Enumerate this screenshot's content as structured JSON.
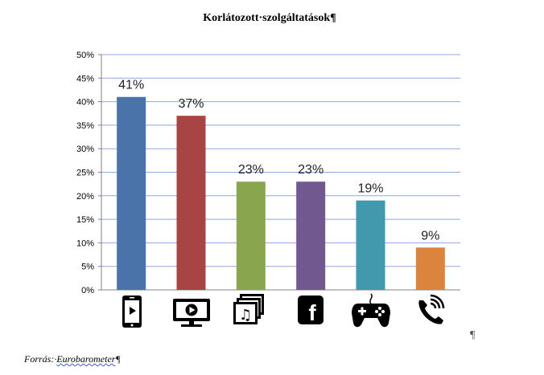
{
  "title": "Korlátozott·szolgáltatások¶",
  "source": {
    "prefix": "Forrás:·",
    "name": "Eurobarometer",
    "pilcrow": "¶"
  },
  "pilcrow_right": "¶",
  "colors": {
    "grid": "#8ea9db",
    "axis": "#808080"
  },
  "chart_data": {
    "type": "bar",
    "title": "Korlátozott·szolgáltatások¶",
    "categories_icons": [
      "smartphone-video-icon",
      "monitor-video-icon",
      "music-library-icon",
      "facebook-icon",
      "gamepad-icon",
      "phone-call-icon"
    ],
    "values": [
      41,
      37,
      23,
      23,
      19,
      9
    ],
    "value_labels": [
      "41%",
      "37%",
      "23%",
      "23%",
      "19%",
      "9%"
    ],
    "colors": [
      "#4a74a9",
      "#a84443",
      "#89a54e",
      "#71588f",
      "#4299ae",
      "#db843d"
    ],
    "y_ticks": [
      "0%",
      "5%",
      "10%",
      "15%",
      "20%",
      "25%",
      "30%",
      "35%",
      "40%",
      "45%",
      "50%"
    ],
    "ylim": [
      0,
      50
    ],
    "grid": true,
    "legend": "none"
  }
}
